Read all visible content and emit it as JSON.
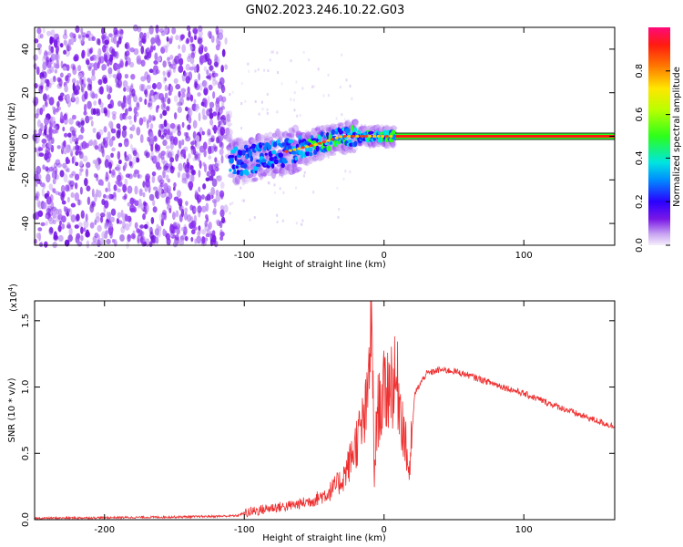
{
  "title": "GN02.2023.246.10.22.G03",
  "chart_data": [
    {
      "type": "heatmap",
      "xlabel": "Height of straight line (km)",
      "ylabel": "Frequency (Hz)",
      "xlim": [
        -250,
        165
      ],
      "ylim": [
        -50,
        50
      ],
      "xticks": [
        -200,
        -100,
        0,
        100
      ],
      "yticks": [
        -40,
        -20,
        0,
        20,
        40
      ],
      "colorbar": {
        "label": "Normalized spectral amplitude",
        "range": [
          0,
          1
        ],
        "ticks": [
          0.0,
          0.2,
          0.4,
          0.6,
          0.8
        ]
      },
      "features": {
        "noise_region_x": [
          -250,
          -113
        ],
        "signal_track": [
          {
            "x": -110,
            "y": -12
          },
          {
            "x": -90,
            "y": -10
          },
          {
            "x": -70,
            "y": -7
          },
          {
            "x": -50,
            "y": -4
          },
          {
            "x": -30,
            "y": 0
          },
          {
            "x": -10,
            "y": 0
          },
          {
            "x": 8,
            "y": 0
          },
          {
            "x": 165,
            "y": 0
          }
        ]
      }
    },
    {
      "type": "line",
      "xlabel": "Height of straight line (km)",
      "ylabel": "SNR (10 * v/v)",
      "yscale_label": "(x10",
      "yscale_exp": "4",
      "yscale_close": ")",
      "xlim": [
        -250,
        165
      ],
      "ylim": [
        0,
        1.65
      ],
      "xticks": [
        -200,
        -100,
        0,
        100
      ],
      "yticks": [
        "0.0",
        "0.5",
        "1.0",
        "1.5"
      ],
      "series": [
        {
          "color": "#ee3030",
          "points": [
            [
              -250,
              0.01
            ],
            [
              -200,
              0.015
            ],
            [
              -150,
              0.02
            ],
            [
              -120,
              0.025
            ],
            [
              -105,
              0.03
            ],
            [
              -100,
              0.05
            ],
            [
              -90,
              0.07
            ],
            [
              -80,
              0.09
            ],
            [
              -70,
              0.1
            ],
            [
              -60,
              0.12
            ],
            [
              -50,
              0.15
            ],
            [
              -40,
              0.2
            ],
            [
              -30,
              0.3
            ],
            [
              -25,
              0.42
            ],
            [
              -20,
              0.58
            ],
            [
              -15,
              0.72
            ],
            [
              -12,
              0.85
            ],
            [
              -9,
              1.65
            ],
            [
              -7,
              0.3
            ],
            [
              -5,
              0.8
            ],
            [
              0,
              0.95
            ],
            [
              5,
              1.05
            ],
            [
              10,
              1.0
            ],
            [
              15,
              0.6
            ],
            [
              18,
              0.35
            ],
            [
              22,
              0.95
            ],
            [
              30,
              1.1
            ],
            [
              40,
              1.13
            ],
            [
              50,
              1.12
            ],
            [
              60,
              1.09
            ],
            [
              80,
              1.02
            ],
            [
              100,
              0.95
            ],
            [
              120,
              0.87
            ],
            [
              140,
              0.79
            ],
            [
              165,
              0.7
            ]
          ]
        }
      ]
    }
  ]
}
